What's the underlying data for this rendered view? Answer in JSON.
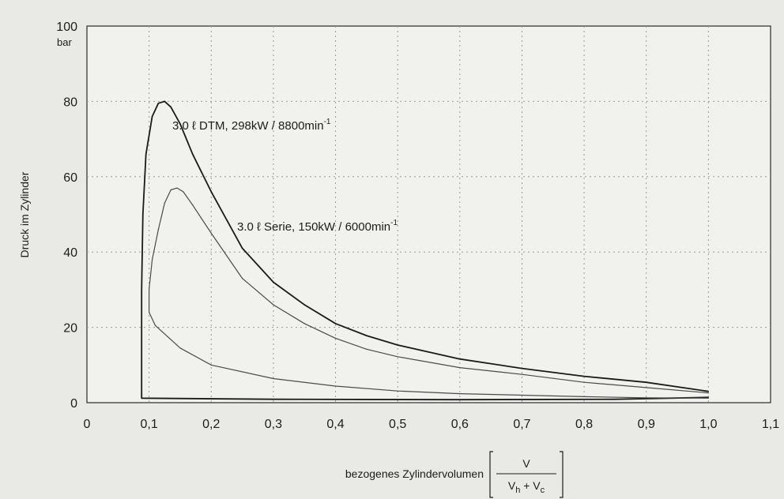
{
  "chart_data": {
    "type": "line",
    "xlabel": "bezogenes Zylindervolumen",
    "xlabel_fraction": {
      "numerator": "V",
      "denominator_main_1": "V",
      "denominator_sub_1": "h",
      "denominator_op": " + ",
      "denominator_main_2": "V",
      "denominator_sub_2": "c"
    },
    "ylabel": "Druck im Zylinder",
    "yunit": "bar",
    "xlim": [
      0,
      1.1
    ],
    "ylim": [
      0,
      100
    ],
    "x_ticks": [
      "0",
      "0,1",
      "0,2",
      "0,3",
      "0,4",
      "0,5",
      "0,6",
      "0,7",
      "0,8",
      "0,9",
      "1,0",
      "1,1"
    ],
    "y_ticks": [
      "0",
      "20",
      "40",
      "60",
      "80",
      "100"
    ],
    "grid": true,
    "series": [
      {
        "name": "3.0 ℓ DTM, 298kW / 8800min-1",
        "label_parts": {
          "main": "3.0 ℓ DTM, 298kW / 8800min",
          "sup": "-1"
        },
        "stroke": "#1a1a1a",
        "points": [
          [
            1.0,
            3.0
          ],
          [
            0.9,
            5.4
          ],
          [
            0.8,
            7.0
          ],
          [
            0.7,
            9.1
          ],
          [
            0.6,
            11.6
          ],
          [
            0.5,
            15.3
          ],
          [
            0.45,
            17.8
          ],
          [
            0.4,
            21.0
          ],
          [
            0.35,
            26.0
          ],
          [
            0.3,
            32.0
          ],
          [
            0.25,
            41.0
          ],
          [
            0.2,
            56.0
          ],
          [
            0.17,
            66.0
          ],
          [
            0.15,
            74.0
          ],
          [
            0.135,
            78.5
          ],
          [
            0.125,
            80.0
          ],
          [
            0.115,
            79.5
          ],
          [
            0.105,
            76.0
          ],
          [
            0.095,
            66.0
          ],
          [
            0.09,
            50.0
          ],
          [
            0.088,
            30.0
          ],
          [
            0.088,
            5.0
          ],
          [
            0.088,
            1.2
          ],
          [
            0.3,
            0.9
          ],
          [
            0.6,
            0.8
          ],
          [
            0.85,
            0.9
          ],
          [
            1.0,
            1.4
          ]
        ]
      },
      {
        "name": "3.0 ℓ Serie, 150kW / 6000min-1",
        "label_parts": {
          "main": "3.0 ℓ Serie, 150kW / 6000min",
          "sup": "-1"
        },
        "stroke": "#4a4a4a",
        "points": [
          [
            1.0,
            2.6
          ],
          [
            0.9,
            4.0
          ],
          [
            0.8,
            5.4
          ],
          [
            0.7,
            7.5
          ],
          [
            0.6,
            9.3
          ],
          [
            0.5,
            12.2
          ],
          [
            0.45,
            14.2
          ],
          [
            0.4,
            17.1
          ],
          [
            0.35,
            21.0
          ],
          [
            0.3,
            26.0
          ],
          [
            0.25,
            33.0
          ],
          [
            0.2,
            45.0
          ],
          [
            0.17,
            52.5
          ],
          [
            0.155,
            56.0
          ],
          [
            0.145,
            57.0
          ],
          [
            0.135,
            56.5
          ],
          [
            0.125,
            53.0
          ],
          [
            0.115,
            46.0
          ],
          [
            0.105,
            38.0
          ],
          [
            0.1,
            30.0
          ],
          [
            0.1,
            24.0
          ],
          [
            0.11,
            20.5
          ],
          [
            0.15,
            14.5
          ],
          [
            0.2,
            10.0
          ],
          [
            0.3,
            6.4
          ],
          [
            0.4,
            4.4
          ],
          [
            0.5,
            3.1
          ],
          [
            0.6,
            2.4
          ],
          [
            0.7,
            2.0
          ],
          [
            0.8,
            1.6
          ],
          [
            0.9,
            1.3
          ],
          [
            1.0,
            1.2
          ]
        ]
      }
    ]
  }
}
